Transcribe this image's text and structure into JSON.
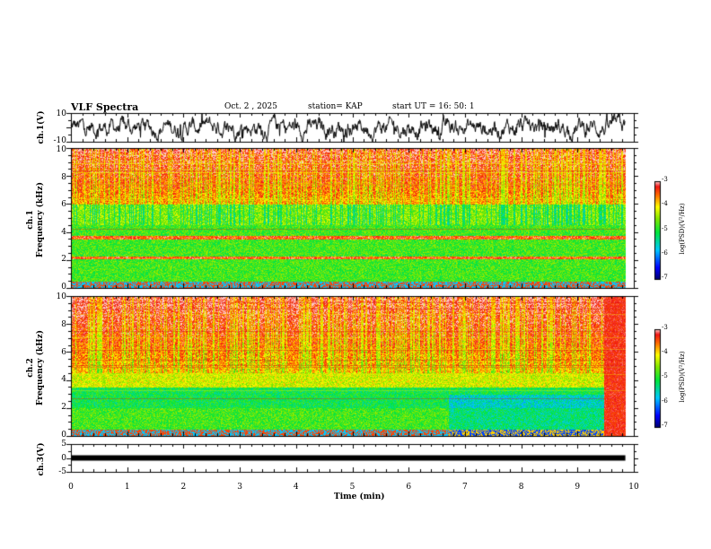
{
  "header": {
    "title": "VLF Spectra",
    "date": "Oct. 2  , 2025",
    "station": "station= KAP",
    "start": "start  UT =   16: 50: 1"
  },
  "chart_data": [
    {
      "type": "line",
      "name": "ch1-waveform",
      "ylabel": "ch.1(V)",
      "ylim": [
        -10,
        10
      ],
      "yticks": [
        "10",
        "-10"
      ],
      "x_range_min": [
        0,
        9.85
      ],
      "line_color": "#000000"
    },
    {
      "type": "heatmap",
      "name": "ch1-spectrogram",
      "ylabel_line1": "ch.1",
      "ylabel_line2": "Frequency  (kHz)",
      "ylim_khz": [
        0,
        10
      ],
      "yticks": [
        "0",
        "2",
        "4",
        "6",
        "8",
        "10"
      ],
      "x_range_min": [
        0,
        9.85
      ],
      "colorbar": {
        "label": "log(PSD)(V²/Hz)",
        "range": [
          -7,
          -3
        ],
        "ticks": [
          "-3",
          "-4",
          "-5",
          "-6",
          "-7"
        ]
      }
    },
    {
      "type": "heatmap",
      "name": "ch2-spectrogram",
      "ylabel_line1": "ch.2",
      "ylabel_line2": "Frequency  (kHz)",
      "ylim_khz": [
        0,
        10
      ],
      "yticks": [
        "0",
        "2",
        "4",
        "6",
        "8",
        "10"
      ],
      "x_range_min": [
        0,
        9.85
      ],
      "colorbar": {
        "label": "log(PSD)(V²/Hz)",
        "range": [
          -7,
          -3
        ],
        "ticks": [
          "-3",
          "-4",
          "-5",
          "-6",
          "-7"
        ]
      }
    },
    {
      "type": "line",
      "name": "ch3-waveform",
      "ylabel": "ch.3(V)",
      "ylim": [
        -5,
        5
      ],
      "yticks": [
        "5",
        "0",
        "-5"
      ],
      "x_range_min": [
        0,
        9.85
      ],
      "level_v": 0,
      "line_color": "#000000"
    }
  ],
  "xaxis": {
    "label": "Time  (min)",
    "range": [
      0,
      10
    ],
    "ticks": [
      "0",
      "1",
      "2",
      "3",
      "4",
      "5",
      "6",
      "7",
      "8",
      "9",
      "10"
    ]
  }
}
